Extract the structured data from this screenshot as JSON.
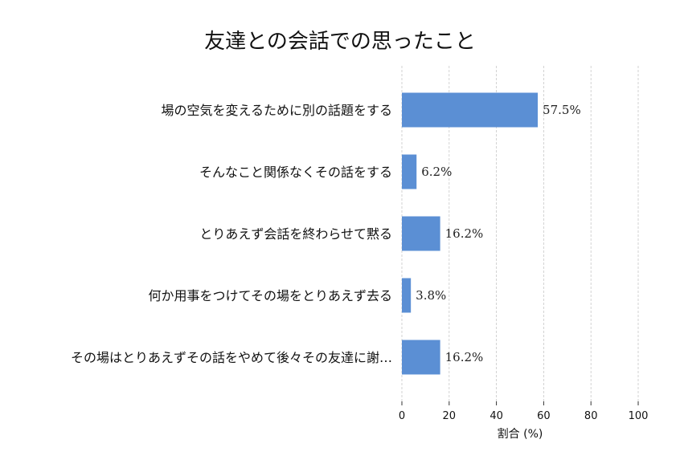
{
  "chart_data": {
    "type": "bar",
    "orientation": "horizontal",
    "title": "友達との会話での思ったこと",
    "categories": [
      "場の空気を変えるために別の話題をする",
      "そんなこと関係なくその話をする",
      "とりあえず会話を終わらせて黙る",
      "何か用事をつけてその場をとりあえず去る",
      "その場はとりあえずその話をやめて後々その友達に謝…"
    ],
    "values": [
      57.5,
      6.2,
      16.2,
      3.8,
      16.2
    ],
    "value_labels": [
      "57.5%",
      "6.2%",
      "16.2%",
      "3.8%",
      "16.2%"
    ],
    "xlabel": "割合 (%)",
    "ylabel": "",
    "xlim": [
      0,
      100
    ],
    "xticks": [
      0,
      20,
      40,
      60,
      80,
      100
    ],
    "xtick_labels": [
      "0",
      "20",
      "40",
      "60",
      "80",
      "100"
    ],
    "grid": true,
    "bar_color": "#5b8fd4"
  }
}
